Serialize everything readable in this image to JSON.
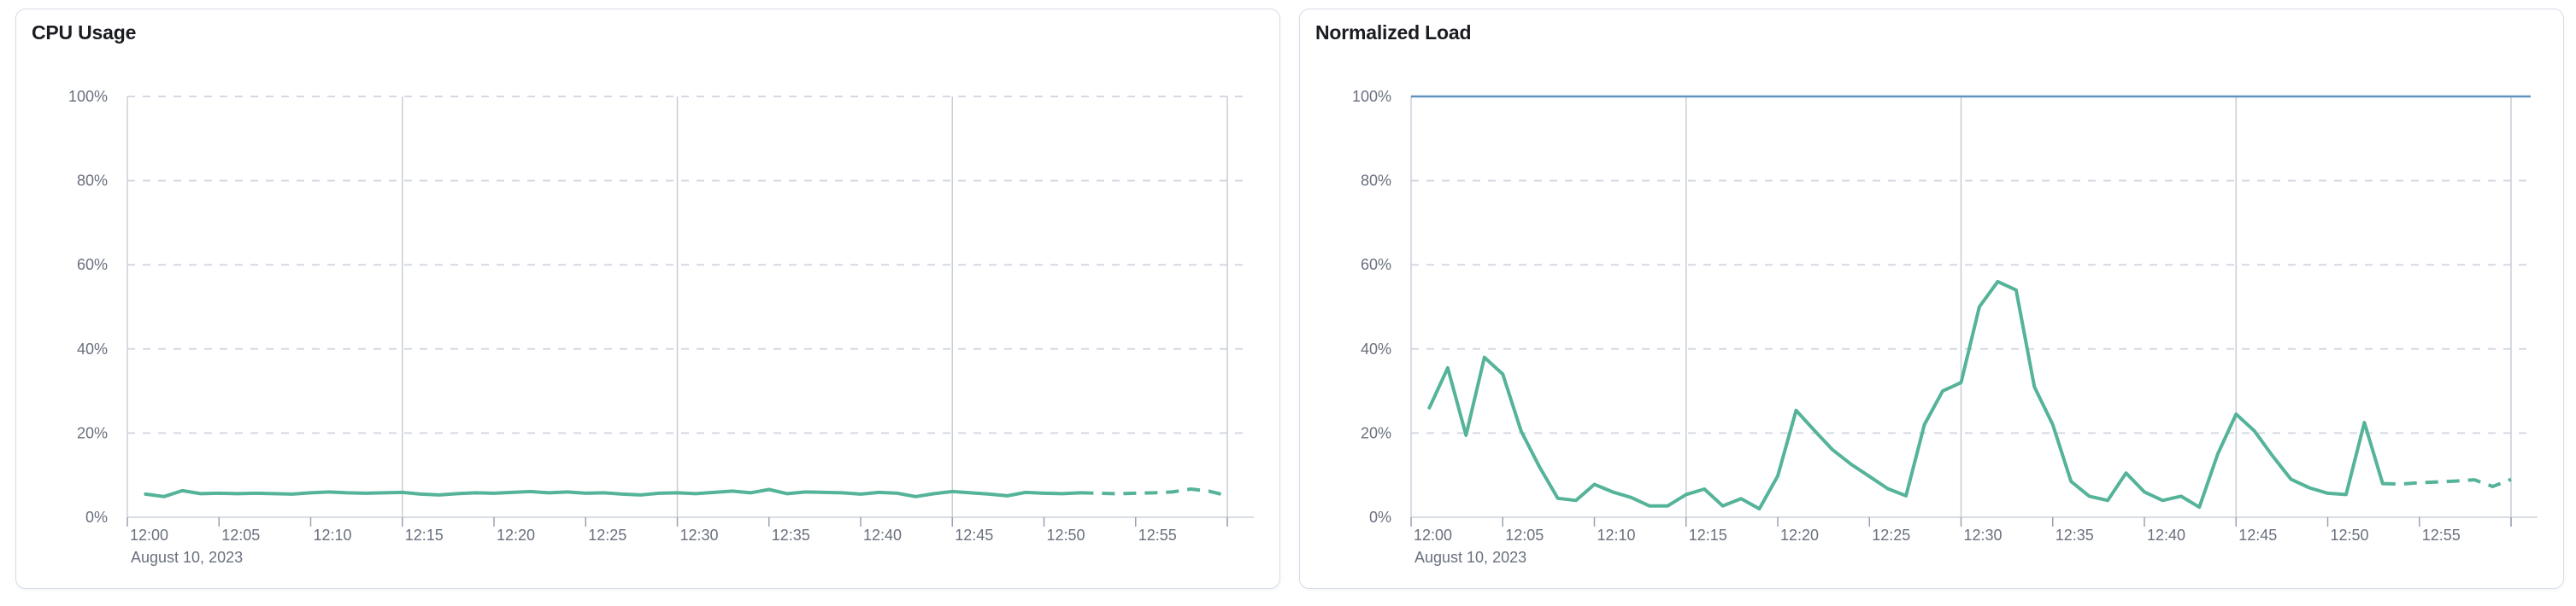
{
  "page": {
    "background_color": "#ffffff",
    "panel_border_color": "#d6dce8",
    "grid_dashed_color": "#d5d9e3",
    "grid_solid_color": "#c9cdd6",
    "axis_line_color": "#ccd0da",
    "tick_color": "#9aa2b0",
    "label_color": "#69707d",
    "title_color": "#1a1c21"
  },
  "chart_data": [
    {
      "type": "line",
      "title": "CPU Usage",
      "date_label": "August 10, 2023",
      "x_tick_labels": [
        "12:00",
        "12:05",
        "12:10",
        "12:15",
        "12:20",
        "12:25",
        "12:30",
        "12:35",
        "12:40",
        "12:45",
        "12:50",
        "12:55"
      ],
      "y_tick_labels": [
        "0%",
        "20%",
        "40%",
        "60%",
        "80%",
        "100%"
      ],
      "ylim": [
        0,
        100
      ],
      "x_axis_minutes_range": [
        0,
        60
      ],
      "x_start_minute": 1,
      "x_step_minutes": 1,
      "grid": {
        "horizontal": "dashed at 20/40/60/80/100",
        "vertical_solid_at_minutes": [
          15,
          30,
          45,
          60
        ]
      },
      "threshold_percent": null,
      "series": [
        {
          "name": "cpu-usage",
          "color": "#54b399",
          "dashed_tail_from_minute": 52,
          "values": [
            5.5,
            4.9,
            6.3,
            5.6,
            5.7,
            5.6,
            5.7,
            5.6,
            5.5,
            5.8,
            6.0,
            5.8,
            5.7,
            5.8,
            5.9,
            5.5,
            5.3,
            5.6,
            5.8,
            5.7,
            5.9,
            6.1,
            5.8,
            6.0,
            5.7,
            5.8,
            5.5,
            5.3,
            5.7,
            5.8,
            5.6,
            5.9,
            6.2,
            5.8,
            6.6,
            5.6,
            6.0,
            5.9,
            5.8,
            5.5,
            5.9,
            5.7,
            4.9,
            5.6,
            6.1,
            5.8,
            5.5,
            5.1,
            5.9,
            5.7,
            5.6,
            5.8,
            5.7,
            5.6,
            5.7,
            5.8,
            6.0,
            6.7,
            6.2,
            5.1
          ]
        }
      ]
    },
    {
      "type": "line",
      "title": "Normalized Load",
      "date_label": "August 10, 2023",
      "x_tick_labels": [
        "12:00",
        "12:05",
        "12:10",
        "12:15",
        "12:20",
        "12:25",
        "12:30",
        "12:35",
        "12:40",
        "12:45",
        "12:50",
        "12:55"
      ],
      "y_tick_labels": [
        "0%",
        "20%",
        "40%",
        "60%",
        "80%",
        "100%"
      ],
      "ylim": [
        0,
        100
      ],
      "x_axis_minutes_range": [
        0,
        60
      ],
      "x_start_minute": 1,
      "x_step_minutes": 1,
      "grid": {
        "horizontal": "dashed at 20/40/60/80",
        "vertical_solid_at_minutes": [
          15,
          30,
          45,
          60
        ]
      },
      "threshold_percent": 100,
      "threshold_color": "#6092c0",
      "series": [
        {
          "name": "normalized-load",
          "color": "#54b399",
          "dashed_tail_from_minute": 53,
          "values": [
            26,
            35.5,
            19.5,
            38,
            34,
            20.5,
            12,
            4.5,
            4,
            7.8,
            6,
            4.7,
            2.7,
            2.7,
            5.4,
            6.7,
            2.7,
            4.4,
            2,
            9.8,
            25.4,
            20.6,
            16,
            12.6,
            9.7,
            6.8,
            5.1,
            22,
            30,
            32,
            50,
            56,
            54,
            31,
            22,
            8.5,
            5,
            4,
            10.5,
            6,
            4,
            5,
            2.4,
            15,
            24.5,
            20.5,
            14.5,
            9,
            7,
            5.7,
            5.4,
            22.5,
            8,
            7.9,
            8.2,
            8.4,
            8.6,
            8.9,
            7.3,
            9
          ]
        }
      ]
    }
  ]
}
